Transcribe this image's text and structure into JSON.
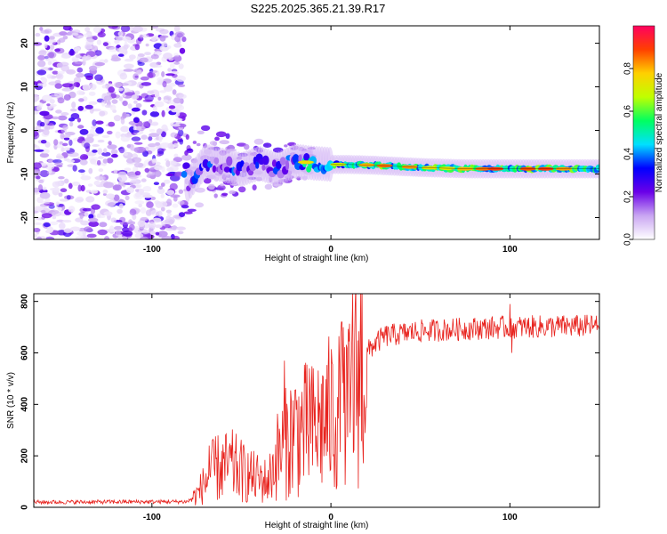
{
  "title": "S225.2025.365.21.39.R17",
  "spectrogram": {
    "type": "heatmap",
    "xlabel": "Height of straight line (km)",
    "ylabel": "Frequency (Hz)",
    "xlim": [
      -166,
      150
    ],
    "ylim": [
      -25,
      24
    ],
    "x_ticks": [
      "-100",
      "0",
      "100"
    ],
    "x_tick_values": [
      -100,
      0,
      100
    ],
    "y_ticks": [
      "20",
      "10",
      "0",
      "-10",
      "-20"
    ],
    "y_tick_values": [
      20,
      10,
      0,
      -10,
      -20
    ],
    "noise_region_x": [
      -166,
      -82
    ],
    "signal_track": [
      {
        "x": -80,
        "f": -12.5
      },
      {
        "x": -70,
        "f": -7
      },
      {
        "x": -60,
        "f": -8
      },
      {
        "x": -50,
        "f": -9
      },
      {
        "x": -40,
        "f": -7.5
      },
      {
        "x": -30,
        "f": -9
      },
      {
        "x": -20,
        "f": -7
      },
      {
        "x": -10,
        "f": -7.5
      },
      {
        "x": 0,
        "f": -7.8
      },
      {
        "x": 10,
        "f": -7.8
      },
      {
        "x": 25,
        "f": -8
      },
      {
        "x": 50,
        "f": -8.5
      },
      {
        "x": 75,
        "f": -8.8
      },
      {
        "x": 100,
        "f": -8.8
      },
      {
        "x": 150,
        "f": -8.8
      }
    ],
    "colorbar": {
      "label": "Normalized spectral amplitude",
      "ticks": [
        "0.0",
        "0.2",
        "0.4",
        "0.6",
        "0.8"
      ],
      "tick_values": [
        0.0,
        0.2,
        0.4,
        0.6,
        0.8
      ],
      "range": [
        0,
        1
      ],
      "colors": [
        "#ffffff",
        "#c9a6f2",
        "#6a00e8",
        "#0000ff",
        "#00e0ff",
        "#00ff60",
        "#c0ff00",
        "#ffd000",
        "#ff4000",
        "#ff0060"
      ]
    }
  },
  "snr_chart": {
    "type": "line",
    "xlabel": "Height of straight line (km)",
    "ylabel": "SNR (10 * v/v)",
    "xlim": [
      -166,
      150
    ],
    "ylim": [
      0,
      830
    ],
    "x_ticks": [
      "-100",
      "0",
      "100"
    ],
    "x_tick_values": [
      -100,
      0,
      100
    ],
    "y_ticks": [
      "0",
      "200",
      "400",
      "600",
      "800"
    ],
    "y_tick_values": [
      0,
      200,
      400,
      600,
      800
    ],
    "line_color": "#e8231e",
    "trend": [
      {
        "x": -166,
        "y": 20
      },
      {
        "x": -80,
        "y": 22
      },
      {
        "x": -75,
        "y": 50
      },
      {
        "x": -65,
        "y": 150
      },
      {
        "x": -55,
        "y": 160
      },
      {
        "x": -45,
        "y": 120
      },
      {
        "x": -35,
        "y": 100
      },
      {
        "x": -30,
        "y": 200
      },
      {
        "x": -20,
        "y": 300
      },
      {
        "x": -10,
        "y": 300
      },
      {
        "x": 0,
        "y": 360
      },
      {
        "x": 10,
        "y": 380
      },
      {
        "x": 15,
        "y": 520
      },
      {
        "x": 22,
        "y": 620
      },
      {
        "x": 30,
        "y": 665
      },
      {
        "x": 50,
        "y": 685
      },
      {
        "x": 80,
        "y": 695
      },
      {
        "x": 100,
        "y": 700
      },
      {
        "x": 150,
        "y": 705
      }
    ],
    "spikes": [
      {
        "x": -68,
        "y": 240
      },
      {
        "x": -26,
        "y": 570
      },
      {
        "x": -12,
        "y": 540
      },
      {
        "x": 6,
        "y": 720
      },
      {
        "x": 12,
        "y": 830
      },
      {
        "x": 100,
        "y": 790
      },
      {
        "x": 101,
        "y": 600
      }
    ]
  }
}
